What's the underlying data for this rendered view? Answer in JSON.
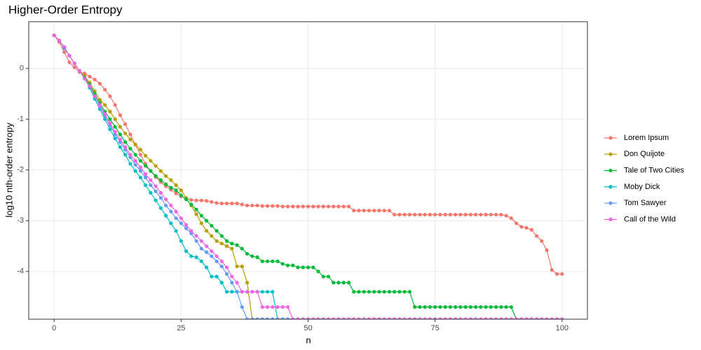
{
  "chart_data": {
    "type": "line",
    "title": "Higher-Order Entropy",
    "xlabel": "n",
    "ylabel": "log10 nth-order entropy",
    "xlim": [
      -5,
      105
    ],
    "ylim": [
      -4.94,
      0.92
    ],
    "xticks": [
      0,
      25,
      50,
      75,
      100
    ],
    "yticks": [
      0,
      -1,
      -2,
      -3,
      -4
    ],
    "grid": true,
    "legend": "right",
    "x": [
      0,
      1,
      2,
      3,
      4,
      5,
      6,
      7,
      8,
      9,
      10,
      11,
      12,
      13,
      14,
      15,
      16,
      17,
      18,
      19,
      20,
      21,
      22,
      23,
      24,
      25,
      26,
      27,
      28,
      29,
      30,
      31,
      32,
      33,
      34,
      35,
      36,
      37,
      38,
      39,
      40,
      41,
      42,
      43,
      44,
      45,
      46,
      47,
      48,
      49,
      50,
      51,
      52,
      53,
      54,
      55,
      56,
      57,
      58,
      59,
      60,
      61,
      62,
      63,
      64,
      65,
      66,
      67,
      68,
      69,
      70,
      71,
      72,
      73,
      74,
      75,
      76,
      77,
      78,
      79,
      80,
      81,
      82,
      83,
      84,
      85,
      86,
      87,
      88,
      89,
      90,
      91,
      92,
      93,
      94,
      95,
      96,
      97,
      98,
      99,
      100
    ],
    "series": [
      {
        "name": "Lorem Ipsum",
        "color": "#F8766D",
        "values": [
          0.65,
          0.52,
          0.32,
          0.12,
          0.02,
          -0.07,
          -0.1,
          -0.16,
          -0.22,
          -0.3,
          -0.42,
          -0.55,
          -0.72,
          -0.92,
          -1.1,
          -1.3,
          -1.5,
          -1.7,
          -1.88,
          -2.02,
          -2.14,
          -2.24,
          -2.32,
          -2.39,
          -2.46,
          -2.52,
          -2.56,
          -2.59,
          -2.6,
          -2.6,
          -2.61,
          -2.63,
          -2.65,
          -2.66,
          -2.66,
          -2.66,
          -2.66,
          -2.68,
          -2.7,
          -2.7,
          -2.7,
          -2.71,
          -2.71,
          -2.71,
          -2.71,
          -2.72,
          -2.72,
          -2.72,
          -2.72,
          -2.72,
          -2.72,
          -2.72,
          -2.72,
          -2.72,
          -2.72,
          -2.72,
          -2.72,
          -2.72,
          -2.72,
          -2.8,
          -2.8,
          -2.8,
          -2.8,
          -2.8,
          -2.8,
          -2.8,
          -2.8,
          -2.88,
          -2.88,
          -2.88,
          -2.88,
          -2.88,
          -2.88,
          -2.88,
          -2.88,
          -2.88,
          -2.88,
          -2.88,
          -2.88,
          -2.88,
          -2.88,
          -2.88,
          -2.88,
          -2.88,
          -2.88,
          -2.88,
          -2.88,
          -2.88,
          -2.88,
          -2.9,
          -2.95,
          -3.05,
          -3.12,
          -3.14,
          -3.18,
          -3.3,
          -3.4,
          -3.58,
          -3.97,
          -4.05,
          -4.05
        ]
      },
      {
        "name": "Don Quijote",
        "color": "#B79F00",
        "values": [
          0.65,
          0.55,
          0.42,
          0.25,
          0.1,
          -0.05,
          -0.15,
          -0.28,
          -0.45,
          -0.62,
          -0.72,
          -0.85,
          -1,
          -1.15,
          -1.28,
          -1.4,
          -1.5,
          -1.6,
          -1.72,
          -1.82,
          -1.92,
          -2.02,
          -2.12,
          -2.2,
          -2.3,
          -2.4,
          -2.55,
          -2.7,
          -2.87,
          -3.05,
          -3.2,
          -3.3,
          -3.4,
          -3.45,
          -3.5,
          -3.55,
          -3.9,
          -3.9,
          -4.22,
          -4.94,
          -4.94,
          -4.94,
          -4.94,
          -4.94,
          -4.94,
          -4.94,
          -4.94,
          -4.94,
          -4.94,
          -4.94,
          -4.94,
          -4.94,
          -4.94,
          -4.94,
          -4.94,
          -4.94,
          -4.94,
          -4.94,
          -4.94,
          -4.94,
          -4.94,
          -4.94,
          -4.94,
          -4.94,
          -4.94,
          -4.94,
          -4.94,
          -4.94,
          -4.94,
          -4.94,
          -4.94,
          -4.94,
          -4.94,
          -4.94,
          -4.94,
          -4.94,
          -4.94,
          -4.94,
          -4.94,
          -4.94,
          -4.94,
          -4.94,
          -4.94,
          -4.94,
          -4.94,
          -4.94,
          -4.94,
          -4.94,
          -4.94,
          -4.94,
          -4.94,
          -4.94,
          -4.94,
          -4.94,
          -4.94,
          -4.94,
          -4.94,
          -4.94,
          -4.94,
          -4.94,
          -4.94
        ]
      },
      {
        "name": "Tale of Two Cities",
        "color": "#00BA38",
        "values": [
          0.65,
          0.55,
          0.4,
          0.25,
          0.1,
          -0.05,
          -0.18,
          -0.32,
          -0.5,
          -0.68,
          -0.85,
          -1,
          -1.15,
          -1.3,
          -1.45,
          -1.58,
          -1.7,
          -1.82,
          -1.92,
          -2.02,
          -2.12,
          -2.2,
          -2.28,
          -2.35,
          -2.4,
          -2.5,
          -2.58,
          -2.68,
          -2.78,
          -2.9,
          -3,
          -3.1,
          -3.2,
          -3.3,
          -3.4,
          -3.45,
          -3.48,
          -3.55,
          -3.65,
          -3.7,
          -3.72,
          -3.8,
          -3.8,
          -3.8,
          -3.8,
          -3.85,
          -3.88,
          -3.88,
          -3.92,
          -3.92,
          -3.92,
          -3.92,
          -4,
          -4.1,
          -4.1,
          -4.22,
          -4.22,
          -4.22,
          -4.22,
          -4.4,
          -4.4,
          -4.4,
          -4.4,
          -4.4,
          -4.4,
          -4.4,
          -4.4,
          -4.4,
          -4.4,
          -4.4,
          -4.4,
          -4.7,
          -4.7,
          -4.7,
          -4.7,
          -4.7,
          -4.7,
          -4.7,
          -4.7,
          -4.7,
          -4.7,
          -4.7,
          -4.7,
          -4.7,
          -4.7,
          -4.7,
          -4.7,
          -4.7,
          -4.7,
          -4.7,
          -4.7,
          -4.94,
          -4.94,
          -4.94,
          -4.94,
          -4.94,
          -4.94,
          -4.94,
          -4.94,
          -4.94,
          -4.94
        ]
      },
      {
        "name": "Moby Dick",
        "color": "#00BFC4",
        "values": [
          0.65,
          0.55,
          0.4,
          0.25,
          0.1,
          -0.05,
          -0.2,
          -0.38,
          -0.6,
          -0.8,
          -1,
          -1.2,
          -1.38,
          -1.55,
          -1.7,
          -1.88,
          -2.02,
          -2.15,
          -2.3,
          -2.45,
          -2.6,
          -2.75,
          -2.9,
          -3.05,
          -3.2,
          -3.4,
          -3.6,
          -3.7,
          -3.72,
          -3.8,
          -3.92,
          -4.1,
          -4.1,
          -4.22,
          -4.4,
          -4.4,
          -4.4,
          -4.4,
          -4.4,
          -4.4,
          -4.4,
          -4.4,
          -4.4,
          -4.4,
          -4.94,
          -4.94,
          -4.94,
          -4.94,
          -4.94,
          -4.94,
          -4.94,
          -4.94,
          -4.94,
          -4.94,
          -4.94,
          -4.94,
          -4.94,
          -4.94,
          -4.94,
          -4.94,
          -4.94,
          -4.94,
          -4.94,
          -4.94,
          -4.94,
          -4.94,
          -4.94,
          -4.94,
          -4.94,
          -4.94,
          -4.94,
          -4.94,
          -4.94,
          -4.94,
          -4.94,
          -4.94,
          -4.94,
          -4.94,
          -4.94,
          -4.94,
          -4.94,
          -4.94,
          -4.94,
          -4.94,
          -4.94,
          -4.94,
          -4.94,
          -4.94,
          -4.94,
          -4.94,
          -4.94,
          -4.94,
          -4.94,
          -4.94,
          -4.94,
          -4.94,
          -4.94,
          -4.94,
          -4.94,
          -4.94,
          -4.94
        ]
      },
      {
        "name": "Tom Sawyer",
        "color": "#619CFF",
        "values": [
          0.65,
          0.55,
          0.42,
          0.25,
          0.1,
          -0.05,
          -0.2,
          -0.35,
          -0.55,
          -0.75,
          -0.95,
          -1.12,
          -1.3,
          -1.45,
          -1.6,
          -1.75,
          -1.9,
          -2.02,
          -2.15,
          -2.3,
          -2.42,
          -2.55,
          -2.7,
          -2.82,
          -2.95,
          -3.05,
          -3.15,
          -3.25,
          -3.4,
          -3.55,
          -3.62,
          -3.7,
          -3.8,
          -3.9,
          -4.05,
          -4.22,
          -4.4,
          -4.7,
          -4.94,
          -4.94,
          -4.94,
          -4.94,
          -4.94,
          -4.94,
          -4.94,
          -4.94,
          -4.94,
          -4.94,
          -4.94,
          -4.94,
          -4.94,
          -4.94,
          -4.94,
          -4.94,
          -4.94,
          -4.94,
          -4.94,
          -4.94,
          -4.94,
          -4.94,
          -4.94,
          -4.94,
          -4.94,
          -4.94,
          -4.94,
          -4.94,
          -4.94,
          -4.94,
          -4.94,
          -4.94,
          -4.94,
          -4.94,
          -4.94,
          -4.94,
          -4.94,
          -4.94,
          -4.94,
          -4.94,
          -4.94,
          -4.94,
          -4.94,
          -4.94,
          -4.94,
          -4.94,
          -4.94,
          -4.94,
          -4.94,
          -4.94,
          -4.94,
          -4.94,
          -4.94,
          -4.94,
          -4.94,
          -4.94,
          -4.94,
          -4.94,
          -4.94,
          -4.94,
          -4.94,
          -4.94,
          -4.94
        ]
      },
      {
        "name": "Call of the Wild",
        "color": "#F564E3",
        "values": [
          0.65,
          0.55,
          0.42,
          0.25,
          0.1,
          -0.05,
          -0.2,
          -0.35,
          -0.55,
          -0.72,
          -0.9,
          -1.08,
          -1.25,
          -1.4,
          -1.55,
          -1.7,
          -1.82,
          -1.95,
          -2.08,
          -2.2,
          -2.32,
          -2.45,
          -2.58,
          -2.7,
          -2.82,
          -2.95,
          -3.08,
          -3.2,
          -3.3,
          -3.4,
          -3.5,
          -3.6,
          -3.7,
          -3.8,
          -3.92,
          -4.1,
          -4.22,
          -4.4,
          -4.4,
          -4.4,
          -4.4,
          -4.7,
          -4.7,
          -4.7,
          -4.7,
          -4.7,
          -4.7,
          -4.94,
          -4.94,
          -4.94,
          -4.94,
          -4.94,
          -4.94,
          -4.94,
          -4.94,
          -4.94,
          -4.94,
          -4.94,
          -4.94,
          -4.94,
          -4.94,
          -4.94,
          -4.94,
          -4.94,
          -4.94,
          -4.94,
          -4.94,
          -4.94,
          -4.94,
          -4.94,
          -4.94,
          -4.94,
          -4.94,
          -4.94,
          -4.94,
          -4.94,
          -4.94,
          -4.94,
          -4.94,
          -4.94,
          -4.94,
          -4.94,
          -4.94,
          -4.94,
          -4.94,
          -4.94,
          -4.94,
          -4.94,
          -4.94,
          -4.94,
          -4.94,
          -4.94,
          -4.94,
          -4.94,
          -4.94,
          -4.94,
          -4.94,
          -4.94,
          -4.94,
          -4.94,
          -4.94
        ]
      }
    ]
  }
}
